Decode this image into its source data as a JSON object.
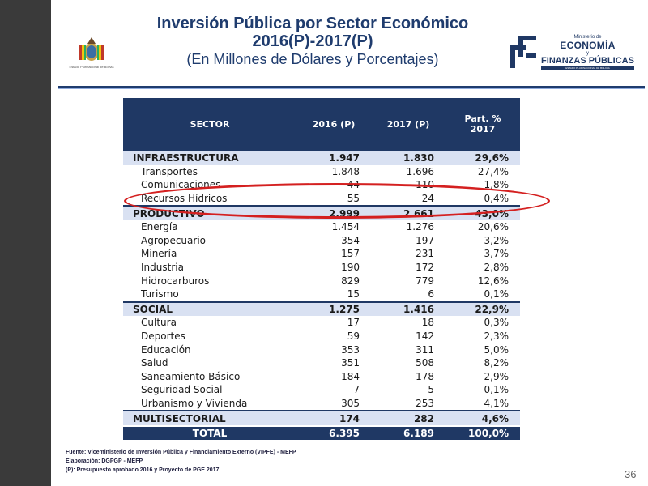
{
  "title": {
    "line1": "Inversión Pública por Sector Económico",
    "line2": "2016(P)-2017(P)",
    "line3": "(En Millones de Dólares y Porcentajes)"
  },
  "logo_left": {
    "text": "Estado Plurinacional de Bolivia"
  },
  "logo_right": {
    "ministerio": "Ministerio de",
    "economia": "ECONOMÍA",
    "y": "y",
    "finanzas": "FINANZAS PÚBLICAS",
    "bar": "ESTADO PLURINACIONAL DE BOLIVIA"
  },
  "table": {
    "headers": [
      "SECTOR",
      "2016 (P)",
      "2017 (P)",
      "Part. % 2017"
    ],
    "rows": [
      {
        "type": "group",
        "name": "INFRAESTRUCTURA",
        "v2016": "1.947",
        "v2017": "1.830",
        "pct": "29,6%"
      },
      {
        "type": "item",
        "name": "Transportes",
        "v2016": "1.848",
        "v2017": "1.696",
        "pct": "27,4%"
      },
      {
        "type": "item",
        "name": "Comunicaciones",
        "v2016": "44",
        "v2017": "110",
        "pct": "1,8%"
      },
      {
        "type": "item",
        "name": "Recursos Hídricos",
        "v2016": "55",
        "v2017": "24",
        "pct": "0,4%"
      },
      {
        "type": "group",
        "name": "PRODUCTIVO",
        "v2016": "2.999",
        "v2017": "2.661",
        "pct": "43,0%"
      },
      {
        "type": "item",
        "name": "Energía",
        "v2016": "1.454",
        "v2017": "1.276",
        "pct": "20,6%"
      },
      {
        "type": "item",
        "name": "Agropecuario",
        "v2016": "354",
        "v2017": "197",
        "pct": "3,2%"
      },
      {
        "type": "item",
        "name": "Minería",
        "v2016": "157",
        "v2017": "231",
        "pct": "3,7%"
      },
      {
        "type": "item",
        "name": "Industria",
        "v2016": "190",
        "v2017": "172",
        "pct": "2,8%"
      },
      {
        "type": "item",
        "name": "Hidrocarburos",
        "v2016": "829",
        "v2017": "779",
        "pct": "12,6%"
      },
      {
        "type": "item",
        "name": "Turismo",
        "v2016": "15",
        "v2017": "6",
        "pct": "0,1%"
      },
      {
        "type": "group",
        "name": "SOCIAL",
        "v2016": "1.275",
        "v2017": "1.416",
        "pct": "22,9%"
      },
      {
        "type": "item",
        "name": "Cultura",
        "v2016": "17",
        "v2017": "18",
        "pct": "0,3%"
      },
      {
        "type": "item",
        "name": "Deportes",
        "v2016": "59",
        "v2017": "142",
        "pct": "2,3%"
      },
      {
        "type": "item",
        "name": "Educación",
        "v2016": "353",
        "v2017": "311",
        "pct": "5,0%"
      },
      {
        "type": "item",
        "name": "Salud",
        "v2016": "351",
        "v2017": "508",
        "pct": "8,2%"
      },
      {
        "type": "item",
        "name": "Saneamiento Básico",
        "v2016": "184",
        "v2017": "178",
        "pct": "2,9%"
      },
      {
        "type": "item",
        "name": "Seguridad Social",
        "v2016": "7",
        "v2017": "5",
        "pct": "0,1%"
      },
      {
        "type": "item",
        "name": "Urbanismo y Vivienda",
        "v2016": "305",
        "v2017": "253",
        "pct": "4,1%"
      },
      {
        "type": "group",
        "name": "MULTISECTORIAL",
        "v2016": "174",
        "v2017": "282",
        "pct": "4,6%"
      },
      {
        "type": "total",
        "name": "TOTAL",
        "v2016": "6.395",
        "v2017": "6.189",
        "pct": "100,0%"
      }
    ]
  },
  "highlight": {
    "color": "#d42020"
  },
  "notes": {
    "fuente": "Fuente: Viceministerio de Inversión Pública y Financiamiento Externo (VIPFE) - MEFP",
    "elaboracion": "Elaboración: DGPGP - MEFP",
    "p": "(P): Presupuesto aprobado 2016 y Proyecto de PGE 2017"
  },
  "page_number": "36",
  "colors": {
    "header": "#1f3864",
    "group": "#d9e1f2",
    "title": "#1f3c6e"
  }
}
